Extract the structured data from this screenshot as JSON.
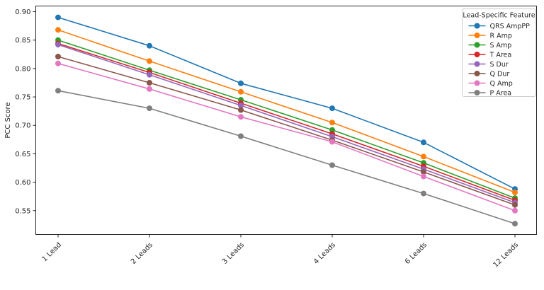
{
  "chart_data": {
    "type": "line",
    "title": "",
    "xlabel": "",
    "ylabel": "PCC Score",
    "categories": [
      "1 Lead",
      "2 Leads",
      "3 Leads",
      "4 Leads",
      "6 Leads",
      "12 Leads"
    ],
    "yticks": [
      0.55,
      0.6,
      0.65,
      0.7,
      0.75,
      0.8,
      0.85,
      0.9
    ],
    "ylim": [
      0.508,
      0.91
    ],
    "grid": false,
    "legend_title": "Lead-Specific Feature",
    "legend_position": "upper right",
    "marker": "circle",
    "series": [
      {
        "name": "QRS AmpPP",
        "color": "#1f77b4",
        "values": [
          0.89,
          0.84,
          0.774,
          0.73,
          0.67,
          0.588
        ]
      },
      {
        "name": "R Amp",
        "color": "#ff7f0e",
        "values": [
          0.868,
          0.813,
          0.759,
          0.705,
          0.645,
          0.582
        ]
      },
      {
        "name": "S Amp",
        "color": "#2ca02c",
        "values": [
          0.85,
          0.797,
          0.745,
          0.692,
          0.634,
          0.572
        ]
      },
      {
        "name": "T Area",
        "color": "#d62728",
        "values": [
          0.844,
          0.793,
          0.739,
          0.685,
          0.628,
          0.568
        ]
      },
      {
        "name": "S Dur",
        "color": "#9467bd",
        "values": [
          0.842,
          0.789,
          0.735,
          0.68,
          0.623,
          0.564
        ]
      },
      {
        "name": "Q Dur",
        "color": "#8c564b",
        "values": [
          0.821,
          0.775,
          0.727,
          0.674,
          0.618,
          0.56
        ]
      },
      {
        "name": "Q Amp",
        "color": "#e377c2",
        "values": [
          0.809,
          0.764,
          0.715,
          0.671,
          0.61,
          0.55
        ]
      },
      {
        "name": "P Area",
        "color": "#7f7f7f",
        "values": [
          0.761,
          0.73,
          0.681,
          0.63,
          0.58,
          0.527
        ]
      }
    ]
  }
}
